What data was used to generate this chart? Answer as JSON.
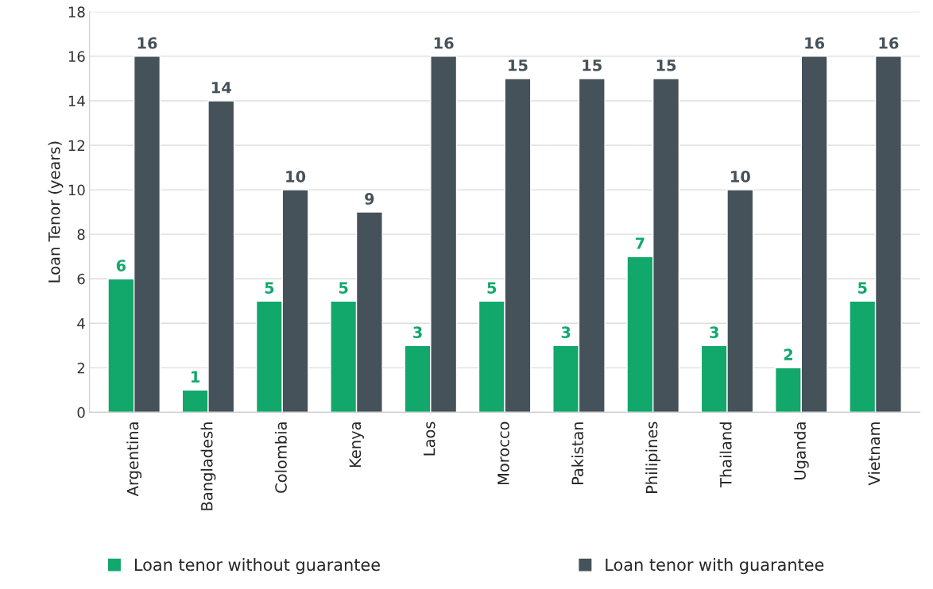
{
  "chart_data": {
    "type": "bar",
    "ylabel": "Loan Tenor (years)",
    "categories": [
      "Argentina",
      "Bangladesh",
      "Colombia",
      "Kenya",
      "Laos",
      "Morocco",
      "Pakistan",
      "Philipines",
      "Thailand",
      "Uganda",
      "Vietnam"
    ],
    "series": [
      {
        "name": "Loan tenor without guarantee",
        "color": "#12a86b",
        "values": [
          6,
          1,
          5,
          5,
          3,
          5,
          3,
          7,
          3,
          2,
          5
        ]
      },
      {
        "name": "Loan tenor with guarantee",
        "color": "#46525a",
        "values": [
          16,
          14,
          10,
          9,
          16,
          15,
          15,
          15,
          10,
          16,
          16
        ]
      }
    ],
    "ylim": [
      0,
      18
    ],
    "yticks": [
      0,
      2,
      4,
      6,
      8,
      10,
      12,
      14,
      16,
      18
    ],
    "grid": "y",
    "legend": "bottom",
    "data_labels": true
  }
}
